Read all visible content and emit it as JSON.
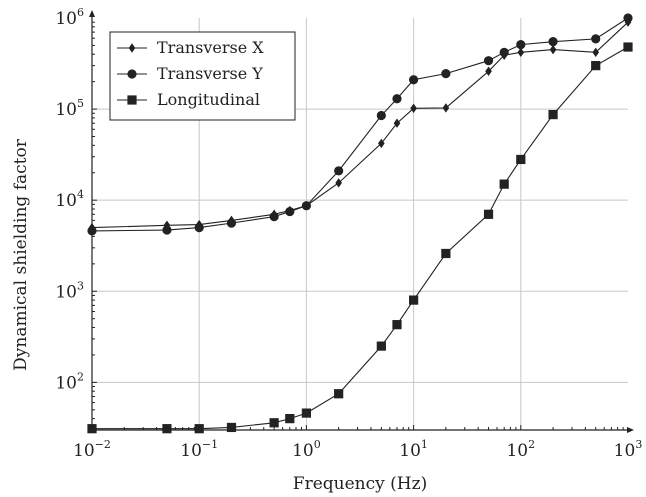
{
  "chart_data": {
    "type": "line",
    "xlabel": "Frequency (Hz)",
    "ylabel": "Dynamical shielding factor",
    "x_scale": "log",
    "y_scale": "log",
    "xlim": [
      0.01,
      1000
    ],
    "ylim": [
      30,
      1000000
    ],
    "x_ticks": [
      {
        "base": "10",
        "exp": "−2",
        "value": 0.01
      },
      {
        "base": "10",
        "exp": "−1",
        "value": 0.1
      },
      {
        "base": "10",
        "exp": "0",
        "value": 1
      },
      {
        "base": "10",
        "exp": "1",
        "value": 10
      },
      {
        "base": "10",
        "exp": "2",
        "value": 100
      },
      {
        "base": "10",
        "exp": "3",
        "value": 1000
      }
    ],
    "y_ticks": [
      {
        "base": "10",
        "exp": "2",
        "value": 100
      },
      {
        "base": "10",
        "exp": "3",
        "value": 1000
      },
      {
        "base": "10",
        "exp": "4",
        "value": 10000
      },
      {
        "base": "10",
        "exp": "5",
        "value": 100000
      },
      {
        "base": "10",
        "exp": "6",
        "value": 1000000
      }
    ],
    "grid": true,
    "legend_position": "top-left",
    "series": [
      {
        "name": "Transverse X",
        "marker": "diamond",
        "x": [
          0.01,
          0.05,
          0.1,
          0.2,
          0.5,
          0.7,
          1,
          2,
          5,
          7,
          10,
          20,
          50,
          70,
          100,
          200,
          500,
          1000
        ],
        "y": [
          5000,
          5300,
          5400,
          6000,
          7000,
          7700,
          8700,
          15500,
          42000,
          70000,
          102000,
          103000,
          260000,
          390000,
          420000,
          450000,
          420000,
          900000
        ]
      },
      {
        "name": "Transverse Y",
        "marker": "circle",
        "x": [
          0.01,
          0.05,
          0.1,
          0.2,
          0.5,
          0.7,
          1,
          2,
          5,
          7,
          10,
          20,
          50,
          70,
          100,
          200,
          500,
          1000
        ],
        "y": [
          4600,
          4700,
          5000,
          5600,
          6600,
          7500,
          8700,
          21000,
          85000,
          130000,
          210000,
          245000,
          340000,
          420000,
          510000,
          550000,
          590000,
          1000000
        ]
      },
      {
        "name": "Longitudinal",
        "marker": "square",
        "x": [
          0.01,
          0.05,
          0.1,
          0.2,
          0.5,
          0.7,
          1,
          2,
          5,
          7,
          10,
          20,
          50,
          70,
          100,
          200,
          500,
          1000
        ],
        "y": [
          31,
          31,
          31,
          32,
          36,
          40,
          46,
          75,
          250,
          430,
          800,
          2600,
          7000,
          15000,
          28000,
          87000,
          300000,
          480000
        ]
      }
    ]
  }
}
